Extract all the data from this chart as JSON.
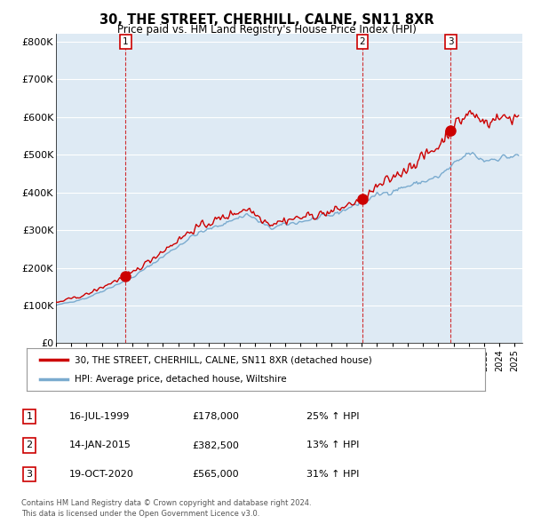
{
  "title": "30, THE STREET, CHERHILL, CALNE, SN11 8XR",
  "subtitle": "Price paid vs. HM Land Registry's House Price Index (HPI)",
  "ylabel_ticks": [
    "£0",
    "£100K",
    "£200K",
    "£300K",
    "£400K",
    "£500K",
    "£600K",
    "£700K",
    "£800K"
  ],
  "ytick_values": [
    0,
    100000,
    200000,
    300000,
    400000,
    500000,
    600000,
    700000,
    800000
  ],
  "ylim": [
    0,
    820000
  ],
  "xlim_start": 1995.0,
  "xlim_end": 2025.5,
  "sale_dates": [
    1999.54,
    2015.04,
    2020.8
  ],
  "sale_prices": [
    178000,
    382500,
    565000
  ],
  "sale_labels": [
    "1",
    "2",
    "3"
  ],
  "legend_red_label": "30, THE STREET, CHERHILL, CALNE, SN11 8XR (detached house)",
  "legend_blue_label": "HPI: Average price, detached house, Wiltshire",
  "table_rows": [
    [
      "1",
      "16-JUL-1999",
      "£178,000",
      "25% ↑ HPI"
    ],
    [
      "2",
      "14-JAN-2015",
      "£382,500",
      "13% ↑ HPI"
    ],
    [
      "3",
      "19-OCT-2020",
      "£565,000",
      "31% ↑ HPI"
    ]
  ],
  "footnote1": "Contains HM Land Registry data © Crown copyright and database right 2024.",
  "footnote2": "This data is licensed under the Open Government Licence v3.0.",
  "red_color": "#cc0000",
  "blue_color": "#7aabcf",
  "chart_bg": "#deeaf4",
  "grid_color": "#ffffff",
  "background_color": "#ffffff"
}
